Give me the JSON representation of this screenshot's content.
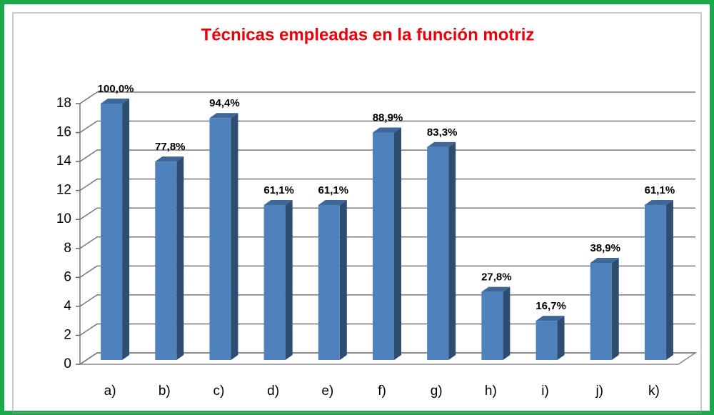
{
  "chart_data": {
    "type": "bar3d",
    "title": "Técnicas empleadas en la función motriz",
    "categories": [
      "a)",
      "b)",
      "c)",
      "d)",
      "e)",
      "f)",
      "g)",
      "h)",
      "i)",
      "j)",
      "k)"
    ],
    "values": [
      18,
      14,
      17,
      11,
      11,
      16,
      15,
      5,
      3,
      7,
      11
    ],
    "value_labels": [
      "100,0%",
      "77,8%",
      "94,4%",
      "61,1%",
      "61,1%",
      "88,9%",
      "83,3%",
      "27,8%",
      "16,7%",
      "38,9%",
      "61,1%"
    ],
    "color": "#4f81bd",
    "ylim": [
      0,
      18
    ],
    "yticks": [
      0,
      2,
      4,
      6,
      8,
      10,
      12,
      14,
      16,
      18
    ],
    "grid": true
  }
}
